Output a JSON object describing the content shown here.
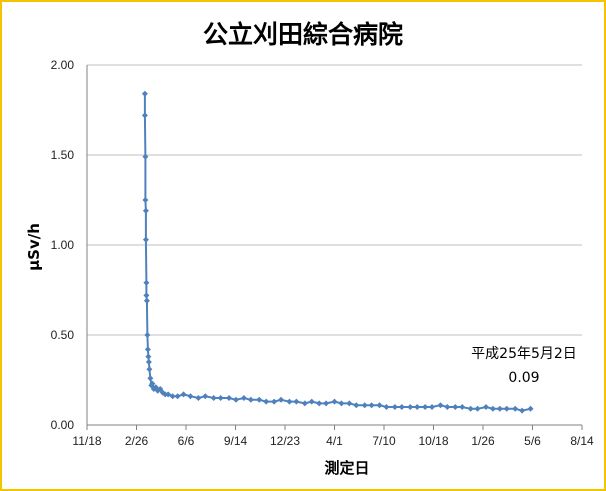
{
  "chart_data": {
    "type": "line",
    "title": "公立刈田綜合病院",
    "xlabel": "測定日",
    "ylabel": "μSv/h",
    "ylim": [
      0,
      2.0
    ],
    "yticks": [
      "0.00",
      "0.50",
      "1.00",
      "1.50",
      "2.00"
    ],
    "xlim": [
      "2010-11-18",
      "2013-08-14"
    ],
    "xticks": [
      {
        "date": "2010-11-18",
        "label": "11/18"
      },
      {
        "date": "2011-02-26",
        "label": "2/26"
      },
      {
        "date": "2011-06-06",
        "label": "6/6"
      },
      {
        "date": "2011-09-14",
        "label": "9/14"
      },
      {
        "date": "2011-12-23",
        "label": "12/23"
      },
      {
        "date": "2012-04-01",
        "label": "4/1"
      },
      {
        "date": "2012-07-10",
        "label": "7/10"
      },
      {
        "date": "2012-10-18",
        "label": "10/18"
      },
      {
        "date": "2013-01-26",
        "label": "1/26"
      },
      {
        "date": "2013-05-06",
        "label": "5/6"
      },
      {
        "date": "2013-08-14",
        "label": "8/14"
      }
    ],
    "grid": "horizontal",
    "series_color": "#4f81bd",
    "series": [
      {
        "x": [
          "2011-03-15",
          "2011-03-15",
          "2011-03-16",
          "2011-03-16",
          "2011-03-17",
          "2011-03-17",
          "2011-03-18",
          "2011-03-18",
          "2011-03-19",
          "2011-03-20",
          "2011-03-21",
          "2011-03-22",
          "2011-03-23",
          "2011-03-24",
          "2011-03-26",
          "2011-03-28",
          "2011-03-30",
          "2011-04-02",
          "2011-04-06",
          "2011-04-10",
          "2011-04-15",
          "2011-04-20",
          "2011-04-25",
          "2011-05-01",
          "2011-05-10",
          "2011-05-20",
          "2011-06-01",
          "2011-06-15",
          "2011-07-01",
          "2011-07-15",
          "2011-08-01",
          "2011-08-15",
          "2011-09-01",
          "2011-09-15",
          "2011-10-01",
          "2011-10-15",
          "2011-11-01",
          "2011-11-15",
          "2011-12-01",
          "2011-12-15",
          "2012-01-01",
          "2012-01-15",
          "2012-02-01",
          "2012-02-15",
          "2012-03-01",
          "2012-03-15",
          "2012-04-01",
          "2012-04-15",
          "2012-05-01",
          "2012-05-15",
          "2012-06-01",
          "2012-06-15",
          "2012-07-01",
          "2012-07-15",
          "2012-08-01",
          "2012-08-15",
          "2012-09-01",
          "2012-09-15",
          "2012-10-01",
          "2012-10-15",
          "2012-11-01",
          "2012-11-15",
          "2012-12-01",
          "2012-12-15",
          "2013-01-01",
          "2013-01-15",
          "2013-02-01",
          "2013-02-15",
          "2013-03-01",
          "2013-03-15",
          "2013-04-01",
          "2013-04-15",
          "2013-05-02"
        ],
        "y": [
          1.84,
          1.72,
          1.49,
          1.25,
          1.19,
          1.03,
          0.79,
          0.72,
          0.69,
          0.5,
          0.42,
          0.38,
          0.35,
          0.31,
          0.26,
          0.22,
          0.23,
          0.2,
          0.21,
          0.19,
          0.2,
          0.18,
          0.17,
          0.17,
          0.16,
          0.16,
          0.17,
          0.16,
          0.15,
          0.16,
          0.15,
          0.15,
          0.15,
          0.14,
          0.15,
          0.14,
          0.14,
          0.13,
          0.13,
          0.14,
          0.13,
          0.13,
          0.12,
          0.13,
          0.12,
          0.12,
          0.13,
          0.12,
          0.12,
          0.11,
          0.11,
          0.11,
          0.11,
          0.1,
          0.1,
          0.1,
          0.1,
          0.1,
          0.1,
          0.1,
          0.11,
          0.1,
          0.1,
          0.1,
          0.09,
          0.09,
          0.1,
          0.09,
          0.09,
          0.09,
          0.09,
          0.08,
          0.09
        ]
      }
    ],
    "annotation": {
      "line1": "平成25年5月2日",
      "line2": "0.09"
    }
  }
}
